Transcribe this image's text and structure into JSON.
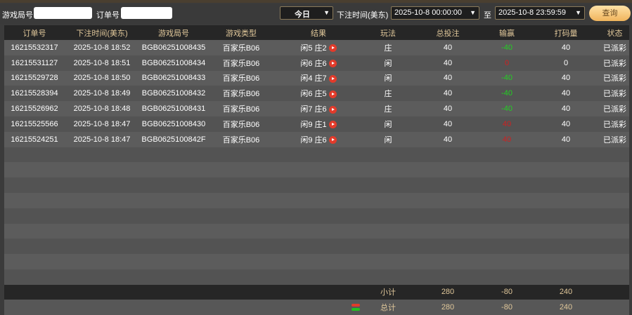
{
  "filters": {
    "game_round_label": "游戏局号",
    "game_round_value": "",
    "order_label": "订单号",
    "order_value": "",
    "range_select": "今日",
    "time_label": "下注时间(美东)",
    "start": "2025-10-8 00:00:00",
    "to_label": "至",
    "end": "2025-10-8 23:59:59",
    "query": "查询"
  },
  "columns": [
    "订单号",
    "下注时间(美东)",
    "游戏局号",
    "游戏类型",
    "结果",
    "玩法",
    "总投注",
    "输赢",
    "打码量",
    "状态"
  ],
  "rows": [
    [
      "16215532317",
      "2025-10-8 18:52",
      "BGB06251008435",
      "百家乐B06",
      "闲5 庄2",
      "庄",
      "40",
      "-40",
      "40",
      "已派彩"
    ],
    [
      "16215531127",
      "2025-10-8 18:51",
      "BGB06251008434",
      "百家乐B06",
      "闲6 庄6",
      "闲",
      "40",
      "0",
      "0",
      "已派彩"
    ],
    [
      "16215529728",
      "2025-10-8 18:50",
      "BGB06251008433",
      "百家乐B06",
      "闲4 庄7",
      "闲",
      "40",
      "-40",
      "40",
      "已派彩"
    ],
    [
      "16215528394",
      "2025-10-8 18:49",
      "BGB06251008432",
      "百家乐B06",
      "闲6 庄5",
      "庄",
      "40",
      "-40",
      "40",
      "已派彩"
    ],
    [
      "16215526962",
      "2025-10-8 18:48",
      "BGB06251008431",
      "百家乐B06",
      "闲7 庄6",
      "庄",
      "40",
      "-40",
      "40",
      "已派彩"
    ],
    [
      "16215525566",
      "2025-10-8 18:47",
      "BGB06251008430",
      "百家乐B06",
      "闲9 庄1",
      "闲",
      "40",
      "40",
      "40",
      "已派彩"
    ],
    [
      "16215524251",
      "2025-10-8 18:47",
      "BGB0625100842F",
      "百家乐B06",
      "闲9 庄6",
      "闲",
      "40",
      "40",
      "40",
      "已派彩"
    ]
  ],
  "win_colors": [
    "green",
    "red",
    "green",
    "green",
    "green",
    "red",
    "red"
  ],
  "empty_rows": 9,
  "subtotal": {
    "label": "小计",
    "bet": "280",
    "win": "-80",
    "turnover": "240"
  },
  "total": {
    "label": "总计",
    "bet": "280",
    "win": "-80",
    "turnover": "240"
  },
  "colors": {
    "accent": "#f0b45c",
    "header_text": "#e0c79a",
    "win_green": "#22d022",
    "loss_red": "#d02020"
  }
}
